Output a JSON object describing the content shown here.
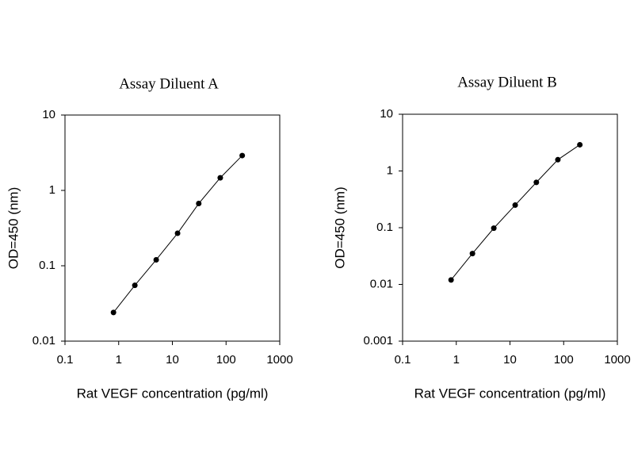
{
  "chart_data": [
    {
      "type": "line",
      "title": "Assay Diluent A",
      "x_label": "Rat VEGF concentration (pg/ml)",
      "y_label": "OD=450 (nm)",
      "x": [
        0.8,
        2,
        5,
        12.5,
        31,
        78,
        200
      ],
      "values": [
        0.024,
        0.055,
        0.12,
        0.27,
        0.67,
        1.47,
        2.9
      ],
      "color": "#000000",
      "xscale": "log",
      "yscale": "log",
      "xlim": [
        0.1,
        1000
      ],
      "ylim": [
        0.01,
        10
      ],
      "xticks": [
        0.1,
        1,
        10,
        100,
        1000
      ],
      "yticks": [
        0.01,
        0.1,
        1,
        10
      ]
    },
    {
      "type": "line",
      "title": "Assay Diluent B",
      "x_label": "Rat VEGF concentration (pg/ml)",
      "y_label": "OD=450 (nm)",
      "x": [
        0.8,
        2,
        5,
        12.5,
        31,
        78,
        200
      ],
      "values": [
        0.012,
        0.035,
        0.098,
        0.25,
        0.63,
        1.58,
        2.9
      ],
      "color": "#000000",
      "xscale": "log",
      "yscale": "log",
      "xlim": [
        0.1,
        1000
      ],
      "ylim": [
        0.001,
        10
      ],
      "xticks": [
        0.1,
        1,
        10,
        100,
        1000
      ],
      "yticks": [
        0.001,
        0.01,
        0.1,
        1,
        10
      ]
    }
  ]
}
